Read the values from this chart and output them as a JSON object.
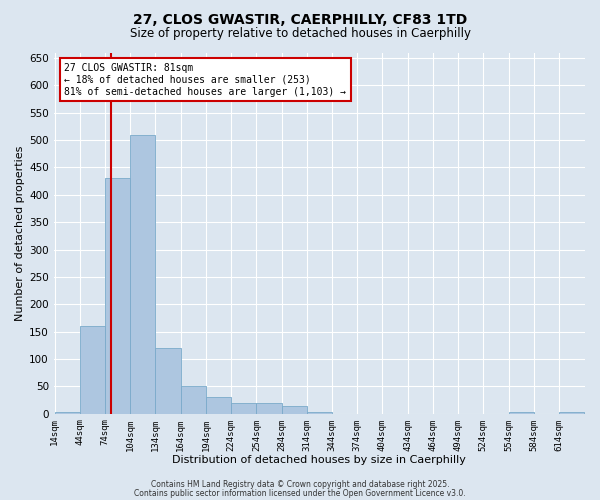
{
  "title_line1": "27, CLOS GWASTIR, CAERPHILLY, CF83 1TD",
  "title_line2": "Size of property relative to detached houses in Caerphilly",
  "xlabel": "Distribution of detached houses by size in Caerphilly",
  "ylabel": "Number of detached properties",
  "bar_color": "#adc6e0",
  "bar_edge_color": "#7aaaca",
  "annotation_line1": "27 CLOS GWASTIR: 81sqm",
  "annotation_line2": "← 18% of detached houses are smaller (253)",
  "annotation_line3": "81% of semi-detached houses are larger (1,103) →",
  "vline_x": 81,
  "vline_color": "#cc0000",
  "background_color": "#dce6f0",
  "grid_color": "#ffffff",
  "categories": [
    "14sqm",
    "44sqm",
    "74sqm",
    "104sqm",
    "134sqm",
    "164sqm",
    "194sqm",
    "224sqm",
    "254sqm",
    "284sqm",
    "314sqm",
    "344sqm",
    "374sqm",
    "404sqm",
    "434sqm",
    "464sqm",
    "494sqm",
    "524sqm",
    "554sqm",
    "584sqm",
    "614sqm"
  ],
  "values": [
    3,
    160,
    430,
    510,
    120,
    50,
    30,
    20,
    20,
    15,
    3,
    0,
    0,
    0,
    0,
    0,
    0,
    0,
    3,
    0,
    3
  ],
  "bin_starts": [
    14,
    44,
    74,
    104,
    134,
    164,
    194,
    224,
    254,
    284,
    314,
    344,
    374,
    404,
    434,
    464,
    494,
    524,
    554,
    584,
    614
  ],
  "bin_width": 30,
  "ylim": [
    0,
    660
  ],
  "yticks": [
    0,
    50,
    100,
    150,
    200,
    250,
    300,
    350,
    400,
    450,
    500,
    550,
    600,
    650
  ],
  "footnote1": "Contains HM Land Registry data © Crown copyright and database right 2025.",
  "footnote2": "Contains public sector information licensed under the Open Government Licence v3.0."
}
